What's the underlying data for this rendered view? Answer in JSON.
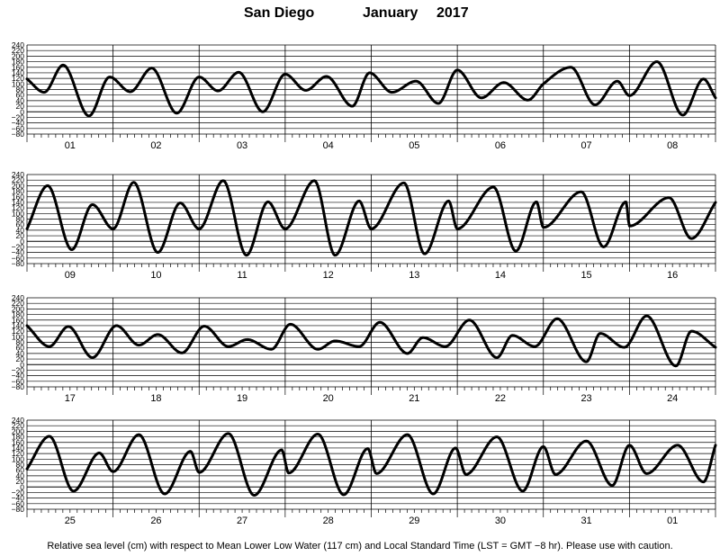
{
  "header": {
    "station": "San Diego",
    "month": "January",
    "year": "2017"
  },
  "footer": {
    "caption": "Relative sea level (cm) with respect to Mean Lower Low Water (117 cm) and Local Standard Time (LST = GMT −8 hr). Please use with caution."
  },
  "chart_data": {
    "type": "line",
    "title": "San Diego January 2017",
    "xlabel": "",
    "ylabel": "",
    "ylim": [
      -80,
      240
    ],
    "yticks": [
      240,
      220,
      200,
      180,
      160,
      140,
      120,
      100,
      80,
      60,
      40,
      20,
      0,
      -20,
      -40,
      -60,
      -80
    ],
    "grid": true,
    "line_color": "#000000",
    "panels": [
      {
        "days": [
          "01",
          "02",
          "03",
          "04",
          "05",
          "06",
          "07",
          "08"
        ],
        "series": [
          {
            "x": [
              0.0,
              0.2,
              0.42,
              0.72,
              0.96,
              1.2,
              1.45,
              1.74,
              2.0,
              2.22,
              2.46,
              2.74,
              3.0,
              3.24,
              3.48,
              3.78,
              3.98,
              4.24,
              4.52,
              4.78,
              5.0,
              5.28,
              5.54,
              5.82,
              6.0,
              6.32,
              6.6,
              6.86,
              7.0,
              7.32,
              7.62,
              7.86,
              8.0
            ],
            "y": [
              118,
              70,
              168,
              -15,
              125,
              72,
              157,
              -5,
              125,
              75,
              142,
              0,
              135,
              77,
              127,
              20,
              140,
              70,
              110,
              30,
              150,
              50,
              105,
              42,
              100,
              160,
              25,
              110,
              58,
              180,
              -12,
              118,
              50
            ]
          }
        ]
      },
      {
        "days": [
          "09",
          "10",
          "11",
          "12",
          "13",
          "14",
          "15",
          "16"
        ],
        "series": [
          {
            "x": [
              0.0,
              0.24,
              0.52,
              0.76,
              1.0,
              1.24,
              1.52,
              1.78,
              2.0,
              2.28,
              2.55,
              2.8,
              3.0,
              3.34,
              3.58,
              3.86,
              4.0,
              4.38,
              4.62,
              4.9,
              5.0,
              5.42,
              5.68,
              5.92,
              6.0,
              6.44,
              6.7,
              6.96,
              7.0,
              7.46,
              7.72,
              8.0
            ],
            "y": [
              45,
              200,
              -30,
              132,
              45,
              212,
              -40,
              138,
              45,
              218,
              -50,
              142,
              45,
              218,
              -50,
              145,
              45,
              210,
              -45,
              145,
              45,
              195,
              -35,
              142,
              50,
              178,
              -20,
              142,
              55,
              157,
              10,
              140
            ]
          }
        ]
      },
      {
        "days": [
          "17",
          "18",
          "19",
          "20",
          "21",
          "22",
          "23",
          "24"
        ],
        "series": [
          {
            "x": [
              0.0,
              0.26,
              0.48,
              0.76,
              1.04,
              1.3,
              1.52,
              1.8,
              2.06,
              2.34,
              2.56,
              2.84,
              3.06,
              3.38,
              3.58,
              3.86,
              4.1,
              4.42,
              4.6,
              4.86,
              5.14,
              5.46,
              5.64,
              5.9,
              6.16,
              6.5,
              6.66,
              6.94,
              7.2,
              7.54,
              7.72,
              8.0
            ],
            "y": [
              140,
              65,
              137,
              25,
              140,
              70,
              108,
              42,
              138,
              65,
              90,
              55,
              145,
              55,
              85,
              65,
              152,
              40,
              97,
              65,
              160,
              25,
              105,
              65,
              165,
              10,
              112,
              62,
              175,
              -5,
              120,
              62
            ]
          }
        ]
      },
      {
        "days": [
          "25",
          "26",
          "27",
          "28",
          "29",
          "30",
          "31",
          "01"
        ],
        "series": [
          {
            "x": [
              0.0,
              0.26,
              0.54,
              0.84,
              1.0,
              1.3,
              1.6,
              1.9,
              2.0,
              2.34,
              2.64,
              2.96,
              3.04,
              3.38,
              3.68,
              3.96,
              4.06,
              4.42,
              4.72,
              4.98,
              5.1,
              5.46,
              5.76,
              6.0,
              6.14,
              6.5,
              6.8,
              7.0,
              7.2,
              7.56,
              7.86,
              8.0
            ],
            "y": [
              65,
              182,
              -15,
              122,
              55,
              188,
              -25,
              128,
              52,
              192,
              -30,
              133,
              50,
              190,
              -28,
              138,
              48,
              188,
              -25,
              140,
              45,
              180,
              -15,
              145,
              45,
              165,
              5,
              150,
              48,
              150,
              18,
              150
            ]
          }
        ]
      }
    ]
  }
}
